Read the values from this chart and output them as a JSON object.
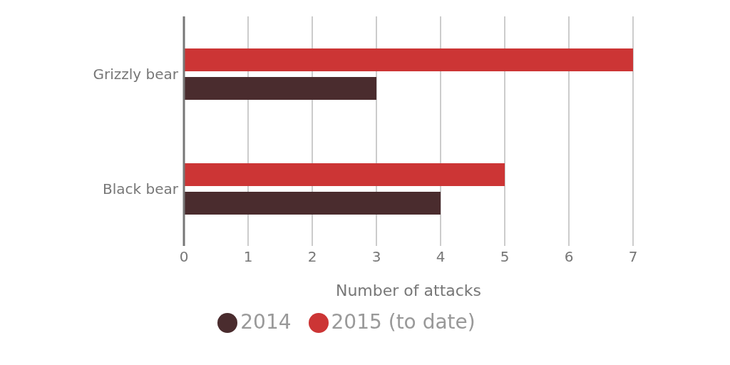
{
  "chart_data": {
    "type": "bar",
    "orientation": "horizontal",
    "xlabel": "Number of attacks",
    "categories": [
      "Grizzly bear",
      "Black bear"
    ],
    "series": [
      {
        "name": "2015 (to date)",
        "color": "#cc3535",
        "values": [
          7,
          5
        ]
      },
      {
        "name": "2014",
        "color": "#4a2c2e",
        "values": [
          3,
          4
        ]
      }
    ],
    "xlim": [
      0,
      7
    ],
    "xticks": [
      0,
      1,
      2,
      3,
      4,
      5,
      6,
      7
    ],
    "grid": "x",
    "legend": "bottom"
  }
}
